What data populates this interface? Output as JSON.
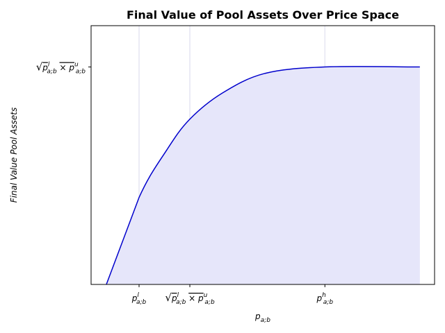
{
  "chart_data": {
    "type": "area",
    "title": "Final Value of Pool Assets Over Price Space",
    "xlabel": "p_{a;b}",
    "ylabel": "Final Value Pool Assets",
    "x": [
      0.356,
      1,
      1.55,
      2,
      2.64,
      3.47,
      4.66,
      6.53
    ],
    "series": [
      {
        "color": "#0000cc",
        "fill": "#e6e6fa",
        "values": [
          0,
          0.4,
          0.62,
          0.76,
          0.88,
          0.97,
          1.0,
          1.0
        ]
      }
    ],
    "xlim": [
      0.055,
      6.82
    ],
    "ylim": [
      0,
      1.19
    ],
    "xticks": [
      {
        "value": 1,
        "label": "p_{a;b}^{l}"
      },
      {
        "value": 2,
        "label": "√(p_{a;b}^{l} × p_{a;b}^{u})"
      },
      {
        "value": 4.66,
        "label": "p_{a;b}^{h}"
      }
    ],
    "yticks": [
      {
        "value": 1,
        "label": "√(p_{a;b}^{l} × p_{a;b}^{u})"
      }
    ]
  }
}
